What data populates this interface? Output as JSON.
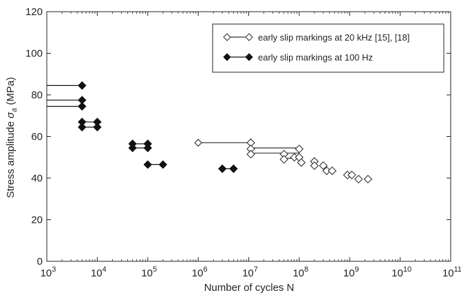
{
  "chart_data": {
    "type": "scatter",
    "xlabel": "Number of cycles N",
    "ylabel_main": "Stress amplitude ",
    "ylabel_symbol": "σ",
    "ylabel_sub": "a",
    "ylabel_unit": " (MPa)",
    "x_scale": "log",
    "xlim": [
      1000,
      100000000000
    ],
    "ylim": [
      0,
      120
    ],
    "x_ticks": [
      {
        "value": 1000,
        "base": "10",
        "exp": "3"
      },
      {
        "value": 10000,
        "base": "10",
        "exp": "4"
      },
      {
        "value": 100000,
        "base": "10",
        "exp": "5"
      },
      {
        "value": 1000000,
        "base": "10",
        "exp": "6"
      },
      {
        "value": 10000000,
        "base": "10",
        "exp": "7"
      },
      {
        "value": 100000000,
        "base": "10",
        "exp": "8"
      },
      {
        "value": 1000000000,
        "base": "10",
        "exp": "9"
      },
      {
        "value": 10000000000,
        "base": "10",
        "exp": "10"
      },
      {
        "value": 100000000000,
        "base": "10",
        "exp": "11"
      }
    ],
    "y_ticks": [
      0,
      20,
      40,
      60,
      80,
      100,
      120
    ],
    "grid": false,
    "legend_position": "top-right",
    "series": [
      {
        "name": "early slip markings at 20 kHz [15], [18]",
        "marker": "open-diamond",
        "color": "#333333",
        "points": [
          {
            "x": 11000000,
            "y": 57
          },
          {
            "x": 11000000,
            "y": 54
          },
          {
            "x": 11000000,
            "y": 51.5
          },
          {
            "x": 50000000,
            "y": 51.5
          },
          {
            "x": 50000000,
            "y": 49
          },
          {
            "x": 80000000,
            "y": 50
          },
          {
            "x": 100000000,
            "y": 54
          },
          {
            "x": 100000000,
            "y": 50
          },
          {
            "x": 110000000,
            "y": 47.5
          },
          {
            "x": 200000000,
            "y": 48
          },
          {
            "x": 200000000,
            "y": 46
          },
          {
            "x": 300000000,
            "y": 46
          },
          {
            "x": 350000000,
            "y": 43.5
          },
          {
            "x": 450000000,
            "y": 43.5
          },
          {
            "x": 900000000,
            "y": 41.5
          },
          {
            "x": 1100000000,
            "y": 41.5
          },
          {
            "x": 1500000000,
            "y": 39.5
          },
          {
            "x": 2300000000,
            "y": 39.5
          }
        ],
        "segments": [
          {
            "x1": 1000000,
            "x2": 11000000,
            "y": 57
          },
          {
            "x1": 11000000,
            "x2": 100000000,
            "y": 54.5
          },
          {
            "x1": 11000000,
            "x2": 100000000,
            "y": 52
          },
          {
            "x1": 50000000,
            "x2": 110000000,
            "y": 49.5
          }
        ],
        "segment_endpoints": [
          {
            "x": 1000000,
            "y": 57
          }
        ]
      },
      {
        "name": "early slip markings at 100 Hz",
        "marker": "filled-diamond",
        "color": "#111111",
        "points": [
          {
            "x": 5000,
            "y": 84.5
          },
          {
            "x": 5000,
            "y": 77.5
          },
          {
            "x": 5000,
            "y": 74.5
          },
          {
            "x": 5000,
            "y": 67
          },
          {
            "x": 10000,
            "y": 67
          },
          {
            "x": 5000,
            "y": 64.5
          },
          {
            "x": 10000,
            "y": 64.5
          },
          {
            "x": 50000,
            "y": 56.5
          },
          {
            "x": 100000,
            "y": 56.5
          },
          {
            "x": 50000,
            "y": 54.5
          },
          {
            "x": 100000,
            "y": 54.5
          },
          {
            "x": 100000,
            "y": 46.5
          },
          {
            "x": 200000,
            "y": 46.5
          },
          {
            "x": 3000000,
            "y": 44.5
          },
          {
            "x": 5000000,
            "y": 44.5
          }
        ],
        "segments": [
          {
            "x1": 1000,
            "x2": 5000,
            "y": 84.5
          },
          {
            "x1": 1000,
            "x2": 5000,
            "y": 77.5
          },
          {
            "x1": 1000,
            "x2": 5000,
            "y": 74.5
          },
          {
            "x1": 5000,
            "x2": 10000,
            "y": 67
          },
          {
            "x1": 5000,
            "x2": 10000,
            "y": 64.5
          },
          {
            "x1": 50000,
            "x2": 100000,
            "y": 56.5
          },
          {
            "x1": 50000,
            "x2": 100000,
            "y": 54.5
          },
          {
            "x1": 100000,
            "x2": 200000,
            "y": 46.5
          },
          {
            "x1": 3000000,
            "x2": 5000000,
            "y": 44.5
          }
        ]
      }
    ]
  }
}
